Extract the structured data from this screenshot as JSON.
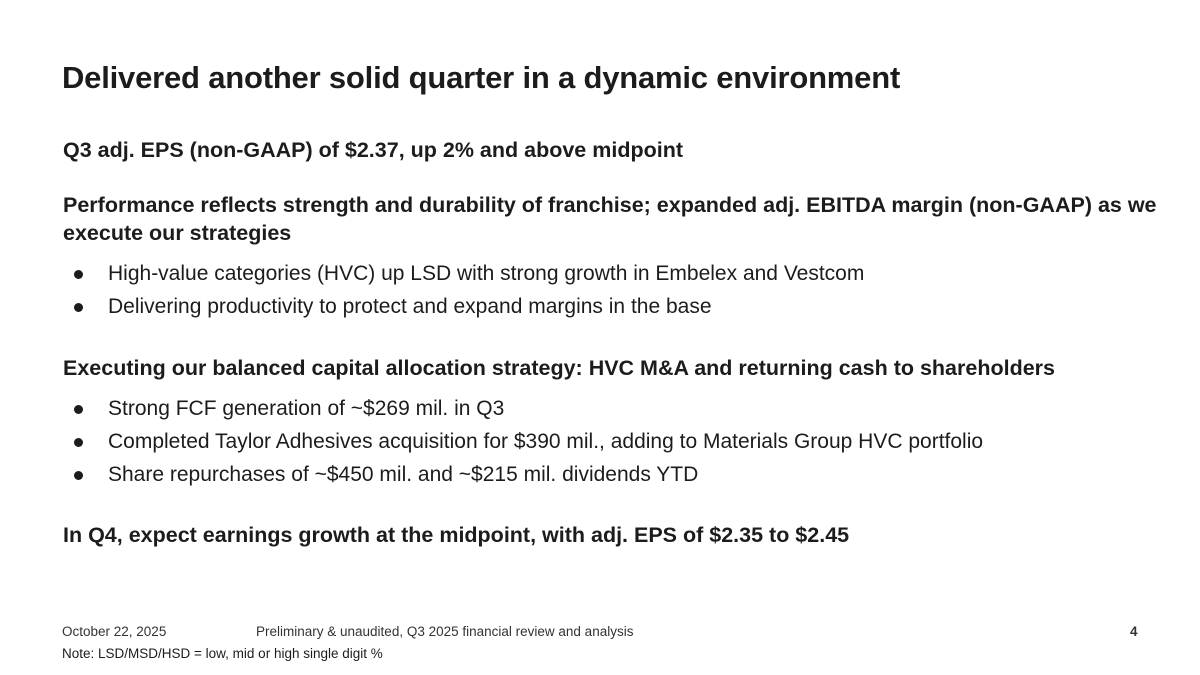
{
  "slide": {
    "title": "Delivered another solid quarter in a dynamic environment",
    "sections": [
      {
        "heading": "Q3 adj. EPS (non-GAAP) of $2.37, up 2% and above midpoint",
        "bullets": []
      },
      {
        "heading": "Performance reflects strength and durability of franchise; expanded adj. EBITDA margin (non-GAAP) as we execute our strategies",
        "bullets": [
          "High-value categories (HVC) up LSD with strong growth in Embelex and Vestcom",
          "Delivering productivity to protect and expand margins in the base"
        ]
      },
      {
        "heading": "Executing our balanced capital allocation strategy: HVC M&A and returning cash to shareholders",
        "bullets": [
          "Strong FCF generation of ~$269 mil. in Q3",
          "Completed Taylor Adhesives acquisition for $390 mil., adding to Materials Group HVC portfolio",
          "Share repurchases of ~$450 mil. and ~$215 mil. dividends YTD"
        ]
      },
      {
        "heading": "In Q4, expect earnings growth at the midpoint, with adj. EPS of $2.35 to $2.45",
        "bullets": []
      }
    ]
  },
  "footer": {
    "date": "October 22, 2025",
    "center_text": "Preliminary & unaudited, Q3 2025 financial review and analysis",
    "page_number": "4",
    "note": "Note: LSD/MSD/HSD = low, mid or high single digit %"
  }
}
